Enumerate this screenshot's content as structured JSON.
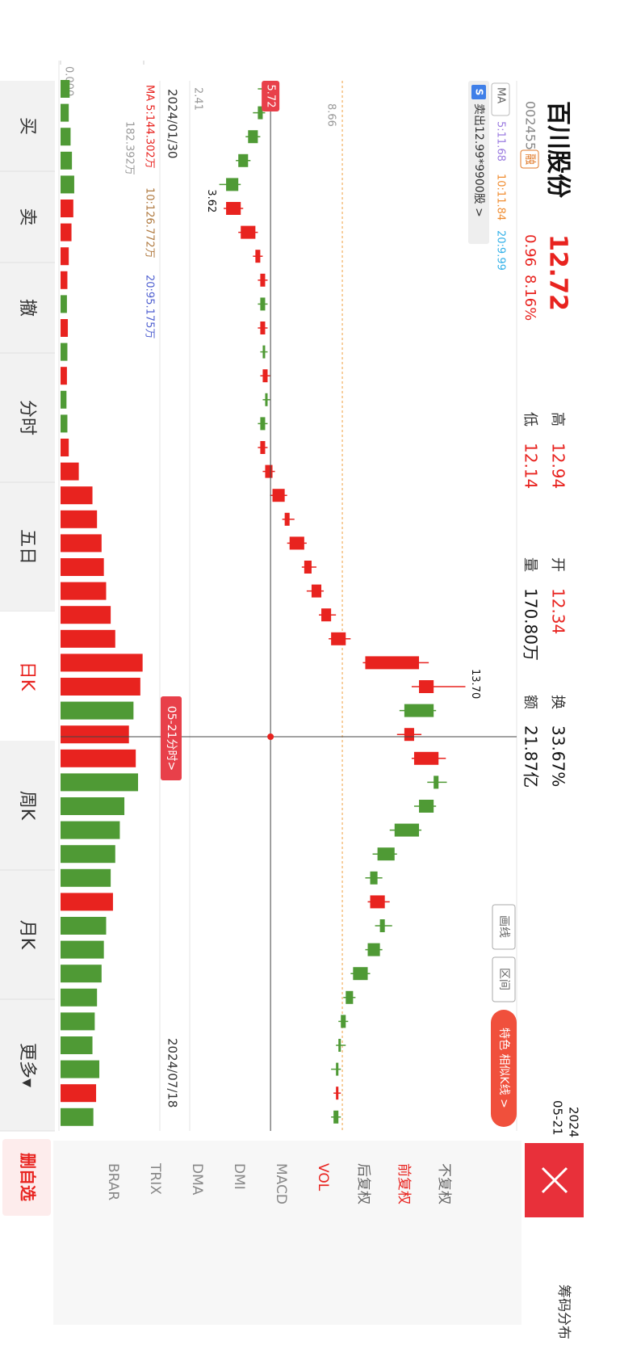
{
  "header": {
    "name": "百川股份",
    "code": "002455",
    "tag": "融",
    "price": "12.72",
    "change": "0.96",
    "pct": "8.16%",
    "stats": [
      {
        "label": "高",
        "value": "12.94"
      },
      {
        "label": "低",
        "value": "12.14"
      },
      {
        "label": "开",
        "value": "12.34"
      },
      {
        "label": "量",
        "value": "170.80万"
      },
      {
        "label": "换",
        "value": "33.67%"
      },
      {
        "label": "额",
        "value": "21.87亿"
      }
    ],
    "year": "2024",
    "date": "05-21"
  },
  "ma_legend": {
    "label": "MA",
    "items": [
      "5:11.68",
      "10:11.84",
      "20:9.99"
    ]
  },
  "trade_badge": "S",
  "trade_note": "卖出12.99*9900股 >",
  "tools": [
    "画线",
    "区间"
  ],
  "feature_button": "特色 相似K线 >",
  "side_panel": {
    "title": "筹码分布",
    "options": [
      "不复权",
      "前复权",
      "后复权"
    ],
    "indicators": [
      "VOL",
      "MACD",
      "DMI",
      "DMA",
      "TRIX",
      "BRAR"
    ]
  },
  "tabs": [
    "买",
    "卖",
    "撤",
    "分时",
    "五日",
    "日K",
    "周K",
    "月K",
    "更多▾"
  ],
  "remove_button": "删自选",
  "chart_data": {
    "type": "candlestick",
    "candles": [
      [
        5.6,
        5.8,
        5.2,
        5.4
      ],
      [
        5.4,
        5.5,
        5.0,
        5.2
      ],
      [
        5.2,
        5.3,
        4.7,
        4.8
      ],
      [
        4.8,
        4.9,
        4.3,
        4.4
      ],
      [
        4.4,
        4.5,
        3.62,
        3.9
      ],
      [
        3.9,
        4.6,
        3.8,
        4.5
      ],
      [
        4.5,
        5.2,
        4.4,
        5.1
      ],
      [
        5.1,
        5.4,
        5.0,
        5.3
      ],
      [
        5.3,
        5.6,
        5.2,
        5.5
      ],
      [
        5.5,
        5.6,
        5.2,
        5.3
      ],
      [
        5.3,
        5.6,
        5.2,
        5.5
      ],
      [
        5.5,
        5.6,
        5.3,
        5.4
      ],
      [
        5.4,
        5.7,
        5.3,
        5.6
      ],
      [
        5.6,
        5.7,
        5.4,
        5.5
      ],
      [
        5.5,
        5.6,
        5.2,
        5.3
      ],
      [
        5.3,
        5.6,
        5.2,
        5.5
      ],
      [
        5.5,
        5.9,
        5.4,
        5.8
      ],
      [
        5.8,
        6.4,
        5.7,
        6.3
      ],
      [
        6.3,
        6.7,
        6.2,
        6.5
      ],
      [
        6.5,
        7.2,
        6.4,
        7.1
      ],
      [
        7.1,
        7.6,
        7.0,
        7.4
      ],
      [
        7.4,
        7.9,
        7.2,
        7.8
      ],
      [
        7.8,
        8.4,
        7.7,
        8.2
      ],
      [
        8.2,
        9.0,
        8.1,
        8.8
      ],
      [
        9.6,
        12.2,
        9.5,
        11.8
      ],
      [
        11.8,
        13.7,
        11.5,
        12.4
      ],
      [
        12.4,
        12.5,
        11.0,
        11.2
      ],
      [
        11.2,
        11.9,
        10.9,
        11.6
      ],
      [
        11.6,
        12.9,
        11.5,
        12.6
      ],
      [
        12.6,
        12.94,
        12.14,
        12.4
      ],
      [
        12.4,
        12.5,
        11.6,
        11.8
      ],
      [
        11.8,
        11.9,
        10.6,
        10.8
      ],
      [
        10.8,
        10.9,
        9.9,
        10.1
      ],
      [
        10.1,
        10.3,
        9.6,
        9.8
      ],
      [
        9.8,
        10.6,
        9.7,
        10.4
      ],
      [
        10.4,
        10.7,
        10.0,
        10.2
      ],
      [
        10.2,
        10.3,
        9.6,
        9.7
      ],
      [
        9.7,
        9.8,
        9.0,
        9.1
      ],
      [
        9.1,
        9.2,
        8.7,
        8.8
      ],
      [
        8.8,
        8.9,
        8.5,
        8.6
      ],
      [
        8.6,
        8.8,
        8.4,
        8.5
      ],
      [
        8.5,
        8.6,
        8.2,
        8.4
      ],
      [
        8.4,
        8.6,
        8.3,
        8.5
      ],
      [
        8.5,
        8.6,
        8.2,
        8.3
      ]
    ],
    "volume": [
      20,
      18,
      22,
      25,
      30,
      28,
      24,
      18,
      15,
      14,
      16,
      15,
      14,
      13,
      15,
      18,
      40,
      70,
      80,
      90,
      95,
      100,
      110,
      120,
      180,
      175,
      160,
      150,
      165,
      170,
      140,
      130,
      120,
      110,
      115,
      100,
      95,
      90,
      80,
      75,
      70,
      85,
      78,
      72
    ],
    "ylim": [
      2.41,
      15.8
    ],
    "yticks": [
      8.66,
      2.41
    ],
    "vlim": [
      0,
      182.392
    ],
    "vticks": [
      {
        "value": 182.392,
        "label": "182.392万"
      },
      {
        "value": 0,
        "label": "0.000"
      }
    ],
    "up_color": "#e8231f",
    "down_color": "#4f9a35",
    "ref_line_color": "#f0a040",
    "crosshair": {
      "price": 5.72,
      "label": "05-21分时>"
    },
    "high_label": "13.70",
    "low_label": "3.62",
    "dates": [
      "2024/01/30",
      "2024/07/18"
    ],
    "vol_legend": [
      "MA 5:144.302万",
      "10:126.772万",
      "20:95.175万"
    ]
  }
}
